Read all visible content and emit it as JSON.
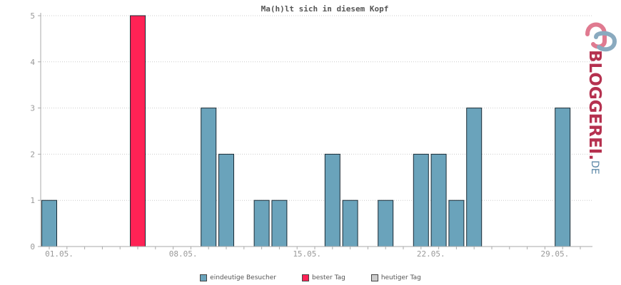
{
  "chart_data": {
    "type": "bar",
    "title": "Ma(h)lt sich in diesem Kopf",
    "xlabel": "",
    "ylabel": "",
    "ylim": [
      0,
      5
    ],
    "yticks": [
      "0",
      "1",
      "2",
      "3",
      "4",
      "5"
    ],
    "grid": true,
    "days": [
      1,
      2,
      3,
      4,
      5,
      6,
      7,
      8,
      9,
      10,
      11,
      12,
      13,
      14,
      15,
      16,
      17,
      18,
      19,
      20,
      21,
      22,
      23,
      24,
      25,
      26,
      27,
      28,
      29,
      30,
      31
    ],
    "xtick_labels": [
      {
        "day": 1,
        "label": "01.05."
      },
      {
        "day": 8,
        "label": "08.05."
      },
      {
        "day": 15,
        "label": "15.05."
      },
      {
        "day": 22,
        "label": "22.05."
      },
      {
        "day": 29,
        "label": "29.05."
      }
    ],
    "series": [
      {
        "name": "eindeutige Besucher",
        "color": "#6aa3bb",
        "values": [
          1,
          0,
          0,
          0,
          0,
          0,
          0,
          0,
          0,
          3,
          2,
          0,
          1,
          1,
          0,
          0,
          2,
          1,
          0,
          1,
          0,
          2,
          2,
          1,
          3,
          0,
          0,
          0,
          0,
          3,
          0
        ]
      },
      {
        "name": "bester Tag",
        "color": "#ff2255",
        "values": [
          0,
          0,
          0,
          0,
          0,
          5,
          0,
          0,
          0,
          0,
          0,
          0,
          0,
          0,
          0,
          0,
          0,
          0,
          0,
          0,
          0,
          0,
          0,
          0,
          0,
          0,
          0,
          0,
          0,
          0,
          0
        ]
      }
    ],
    "legend": [
      {
        "label": "eindeutige Besucher",
        "color": "#6aa3bb"
      },
      {
        "label": "bester Tag",
        "color": "#ff2255"
      },
      {
        "label": "heutiger Tag",
        "color": "#cccccc"
      }
    ],
    "legend_position": "bottom"
  },
  "logo": {
    "main": "BLOGGEREI.",
    "suffix": "DE"
  }
}
